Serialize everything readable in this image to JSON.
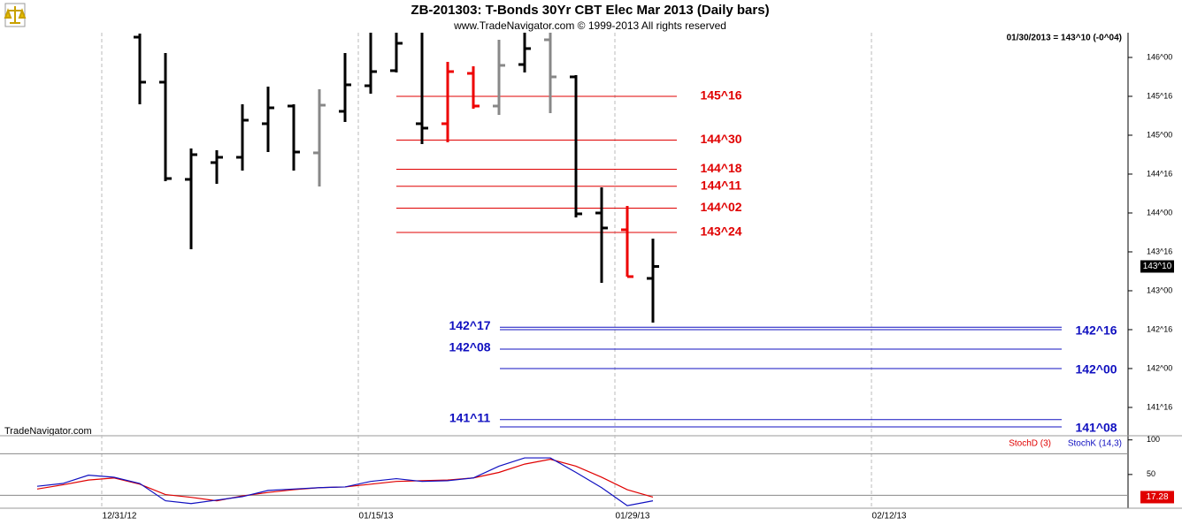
{
  "header": {
    "title": "ZB-201303:  T-Bonds 30Yr CBT Elec Mar 2013  (Daily bars)",
    "copyright": "www.TradeNavigator.com © 1999-2013 All rights reserved",
    "quote": "01/30/2013 = 143^10 (-0^04)",
    "watermark": "TradeNavigator.com"
  },
  "chart_data": [
    {
      "type": "ohlc",
      "categories": [
        null,
        null,
        null,
        "12/31/12",
        null,
        null,
        null,
        null,
        null,
        null,
        null,
        null,
        null,
        "01/15/13",
        null,
        null,
        null,
        null,
        null,
        null,
        null,
        null,
        null,
        "01/29/13",
        null,
        null,
        null,
        null,
        null,
        null,
        null,
        null,
        null,
        "02/12/13",
        null,
        null,
        null,
        null,
        null,
        null,
        null,
        null,
        null
      ],
      "open": [
        null,
        null,
        null,
        null,
        146.261,
        145.682,
        144.432,
        144.648,
        144.716,
        145.148,
        145.375,
        144.773,
        145.307,
        145.636,
        145.83,
        145.148,
        145.148,
        145.795,
        145.375,
        145.909,
        146.227,
        145.75,
        144.0,
        143.784,
        143.159,
        null,
        null,
        null,
        null,
        null,
        null,
        null,
        null,
        null,
        null,
        null,
        null,
        null,
        null,
        null,
        null,
        null,
        null
      ],
      "high": [
        null,
        null,
        null,
        null,
        146.307,
        146.057,
        144.83,
        144.807,
        145.398,
        145.625,
        145.398,
        145.591,
        146.057,
        146.318,
        146.318,
        146.318,
        145.943,
        145.886,
        146.227,
        146.318,
        146.318,
        145.773,
        144.33,
        144.091,
        143.67,
        null,
        null,
        null,
        null,
        null,
        null,
        null,
        null,
        null,
        null,
        null,
        null,
        null,
        null,
        null,
        null,
        null,
        null
      ],
      "low": [
        null,
        null,
        null,
        null,
        145.398,
        144.409,
        143.534,
        144.375,
        144.545,
        144.784,
        144.545,
        144.341,
        145.17,
        145.534,
        145.807,
        144.886,
        144.909,
        145.341,
        145.261,
        145.807,
        145.284,
        143.943,
        143.102,
        143.182,
        142.591,
        null,
        null,
        null,
        null,
        null,
        null,
        null,
        null,
        null,
        null,
        null,
        null,
        null,
        null,
        null,
        null,
        null,
        null
      ],
      "close": [
        null,
        null,
        null,
        null,
        145.682,
        144.443,
        144.75,
        144.716,
        145.193,
        145.352,
        144.784,
        145.386,
        145.648,
        145.818,
        146.182,
        145.091,
        145.818,
        145.375,
        145.898,
        146.114,
        145.75,
        143.989,
        143.807,
        143.182,
        143.3125,
        null,
        null,
        null,
        null,
        null,
        null,
        null,
        null,
        null,
        null,
        null,
        null,
        null,
        null,
        null,
        null,
        null,
        null
      ],
      "bar_colors": [
        null,
        null,
        null,
        null,
        "#000000",
        "#000000",
        "#000000",
        "#000000",
        "#000000",
        "#000000",
        "#000000",
        "#888888",
        "#000000",
        "#000000",
        "#000000",
        "#000000",
        "#ee0000",
        "#ee0000",
        "#888888",
        "#000000",
        "#888888",
        "#000000",
        "#000000",
        "#ee0000",
        "#000000",
        null,
        null,
        null,
        null,
        null,
        null,
        null,
        null,
        null,
        null,
        null,
        null,
        null,
        null,
        null,
        null,
        null,
        null
      ],
      "last": {
        "value": 143.3125,
        "label": "143^10"
      },
      "ylim": [
        141.136,
        146.318
      ],
      "yticks": [
        {
          "value": 146,
          "label": "146^00"
        },
        {
          "value": 145.5,
          "label": "145^16"
        },
        {
          "value": 145,
          "label": "145^00"
        },
        {
          "value": 144.5,
          "label": "144^16"
        },
        {
          "value": 144,
          "label": "144^00"
        },
        {
          "value": 143.5,
          "label": "143^16"
        },
        {
          "value": 143,
          "label": "143^00"
        },
        {
          "value": 142.5,
          "label": "142^16"
        },
        {
          "value": 142,
          "label": "142^00"
        },
        {
          "value": 141.5,
          "label": "141^16"
        }
      ],
      "resistance_color": "#e00000",
      "resistance_levels": [
        {
          "value": 145.5,
          "label": "145^16"
        },
        {
          "value": 144.9375,
          "label": "144^30"
        },
        {
          "value": 144.5625,
          "label": "144^18"
        },
        {
          "value": 144.34375,
          "label": "144^11"
        },
        {
          "value": 144.0625,
          "label": "144^02"
        },
        {
          "value": 143.75,
          "label": "143^24"
        }
      ],
      "support_color": "#1010c0",
      "support_levels": [
        {
          "value": 142.53125,
          "label": "142^17"
        },
        {
          "value": 142.5,
          "label": "142^16"
        },
        {
          "value": 142.25,
          "label": "142^08"
        },
        {
          "value": 142.0,
          "label": "142^00"
        },
        {
          "value": 141.34375,
          "label": "141^11"
        },
        {
          "value": 141.25,
          "label": "141^08"
        }
      ]
    },
    {
      "type": "line",
      "series": [
        {
          "name": "StochD (3)",
          "color": "#e00000",
          "values": [
            29,
            35,
            42,
            45,
            36,
            21,
            17,
            12,
            19,
            24,
            28,
            31,
            32,
            36,
            40,
            41,
            42,
            45,
            53,
            65,
            72,
            62,
            46,
            28,
            17.28,
            null,
            null,
            null,
            null,
            null,
            null,
            null,
            null,
            null,
            null,
            null,
            null,
            null,
            null,
            null,
            null,
            null,
            null
          ]
        },
        {
          "name": "StochK (14,3)",
          "color": "#1010c0",
          "values": [
            33,
            37,
            49,
            46,
            37,
            12,
            8,
            13,
            18,
            27,
            29,
            31,
            32,
            40,
            44,
            40,
            41,
            45,
            62,
            74,
            74,
            53,
            31,
            5,
            12,
            null,
            null,
            null,
            null,
            null,
            null,
            null,
            null,
            null,
            null,
            null,
            null,
            null,
            null,
            null,
            null,
            null,
            null
          ]
        }
      ],
      "last": 17.28,
      "ylim": [
        0,
        106
      ],
      "yticks": [
        100,
        50
      ],
      "levels": [
        80,
        20
      ]
    }
  ]
}
